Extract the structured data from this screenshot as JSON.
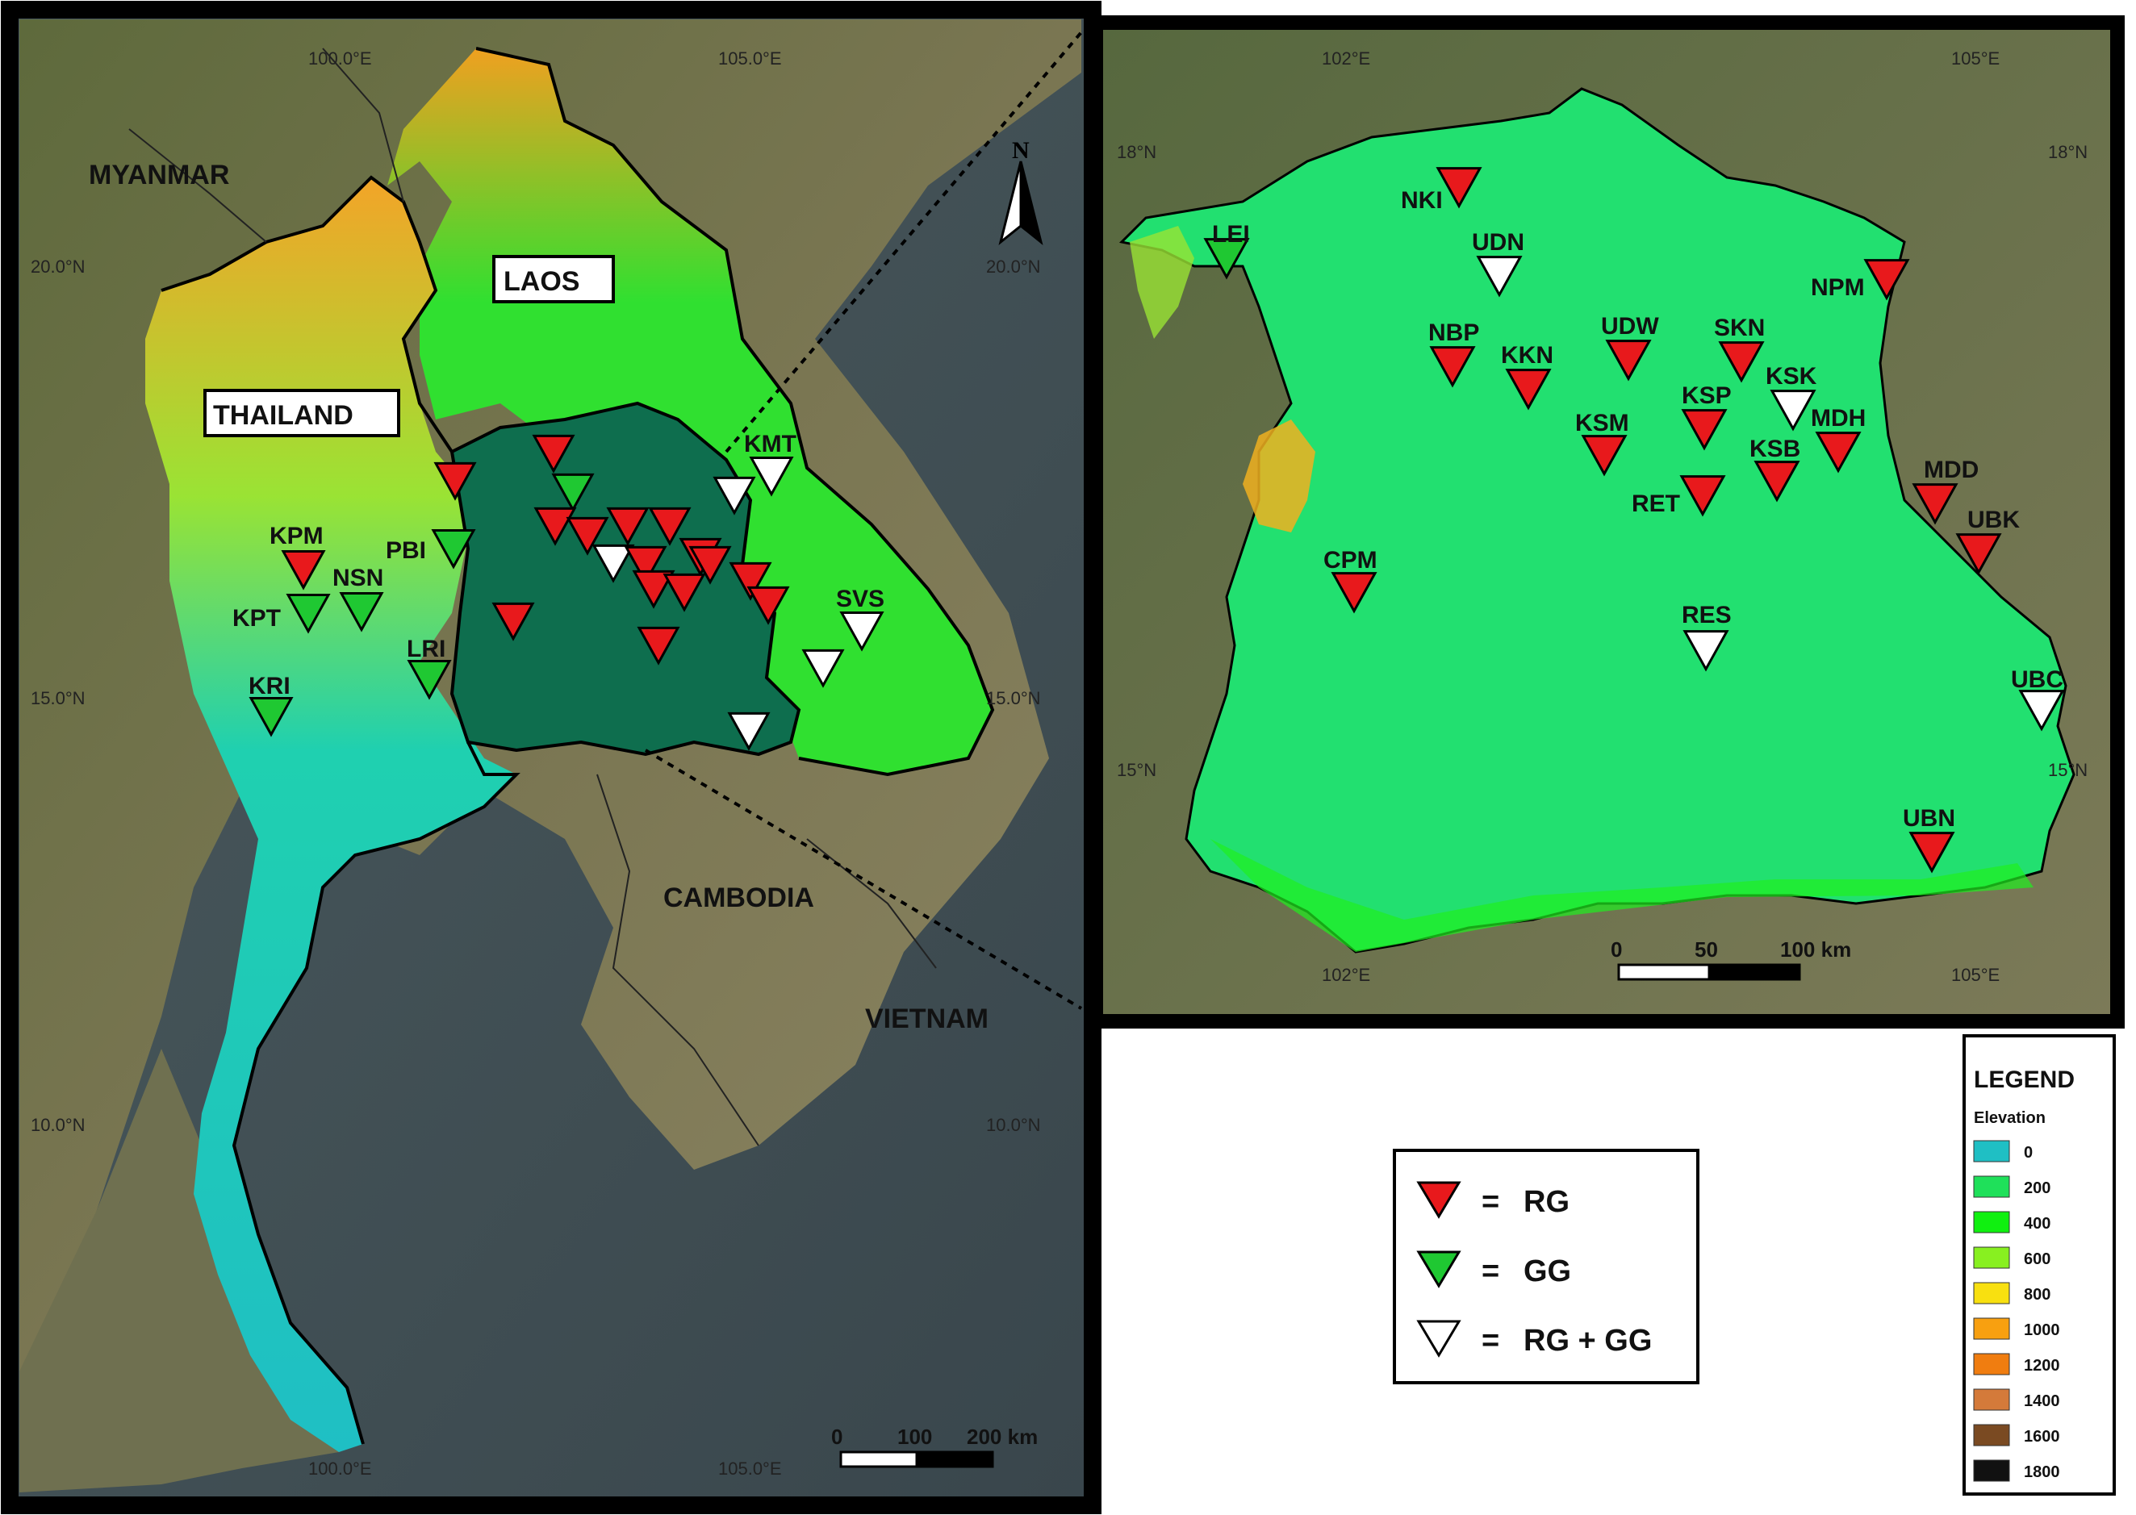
{
  "left_map": {
    "countries": [
      "MYANMAR",
      "LAOS",
      "THAILAND",
      "CAMBODIA",
      "VIETNAM"
    ],
    "lon_labels": [
      "100.0°E",
      "105.0°E"
    ],
    "lat_labels": [
      "20.0°N",
      "15.0°N",
      "10.0°N"
    ],
    "north": "N",
    "scale": [
      "0",
      "100",
      "200 km"
    ],
    "stations": [
      {
        "code": "KPM",
        "type": "RG"
      },
      {
        "code": "KPT",
        "type": "GG"
      },
      {
        "code": "NSN",
        "type": "GG"
      },
      {
        "code": "KRI",
        "type": "GG"
      },
      {
        "code": "PBI",
        "type": "GG"
      },
      {
        "code": "LRI",
        "type": "GG"
      },
      {
        "code": "KMT",
        "type": "RG + GG"
      },
      {
        "code": "SVS",
        "type": "RG + GG"
      }
    ]
  },
  "right_map": {
    "lon_labels": [
      "102°E",
      "105°E"
    ],
    "lat_labels": [
      "18°N",
      "15°N"
    ],
    "scale": [
      "0",
      "50",
      "100 km"
    ],
    "stations": [
      {
        "code": "NKI",
        "type": "RG"
      },
      {
        "code": "LEI",
        "type": "GG"
      },
      {
        "code": "UDN",
        "type": "RG + GG"
      },
      {
        "code": "NPM",
        "type": "RG"
      },
      {
        "code": "NBP",
        "type": "RG"
      },
      {
        "code": "KKN",
        "type": "RG"
      },
      {
        "code": "UDW",
        "type": "RG"
      },
      {
        "code": "SKN",
        "type": "RG"
      },
      {
        "code": "KSK",
        "type": "RG + GG"
      },
      {
        "code": "KSP",
        "type": "RG"
      },
      {
        "code": "KSM",
        "type": "RG"
      },
      {
        "code": "MDH",
        "type": "RG"
      },
      {
        "code": "KSB",
        "type": "RG"
      },
      {
        "code": "RET",
        "type": "RG"
      },
      {
        "code": "MDD",
        "type": "RG"
      },
      {
        "code": "UBK",
        "type": "RG"
      },
      {
        "code": "CPM",
        "type": "RG"
      },
      {
        "code": "RES",
        "type": "RG + GG"
      },
      {
        "code": "UBC",
        "type": "RG + GG"
      },
      {
        "code": "UBN",
        "type": "RG"
      }
    ]
  },
  "symbol_key": [
    {
      "symbol": "=",
      "label": "RG",
      "color": "#e8191c"
    },
    {
      "symbol": "=",
      "label": "GG",
      "color": "#1fc832"
    },
    {
      "symbol": "=",
      "label": "RG + GG",
      "color": "#ffffff"
    }
  ],
  "legend": {
    "title": "LEGEND",
    "subtitle": "Elevation",
    "items": [
      {
        "value": "0",
        "color": "#1fbfc4"
      },
      {
        "value": "200",
        "color": "#1fe05a"
      },
      {
        "value": "400",
        "color": "#10f010"
      },
      {
        "value": "600",
        "color": "#88f020"
      },
      {
        "value": "800",
        "color": "#f8e010"
      },
      {
        "value": "1000",
        "color": "#f8a010"
      },
      {
        "value": "1200",
        "color": "#f07d10"
      },
      {
        "value": "1400",
        "color": "#d47a3a"
      },
      {
        "value": "1600",
        "color": "#7a4a22"
      },
      {
        "value": "1800",
        "color": "#111111"
      }
    ]
  }
}
